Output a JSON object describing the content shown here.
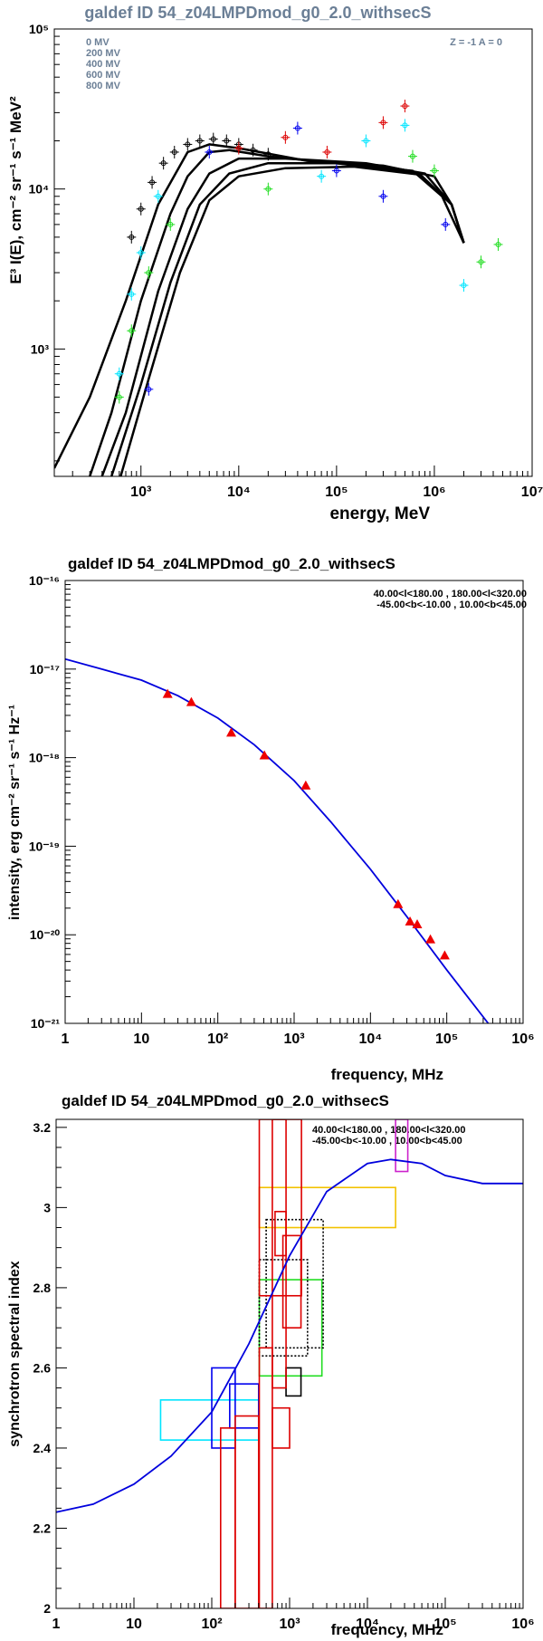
{
  "chart_data": [
    {
      "type": "line",
      "title": "galdef ID 54_z04LMPDmod_g0_2.0_withsecS",
      "xlabel": "energy, MeV",
      "ylabel": "E³ I(E), cm⁻² sr⁻¹ s⁻¹ MeV²",
      "xscale": "log",
      "yscale": "log",
      "xlim": [
        130,
        10000000
      ],
      "ylim": [
        160,
        100000
      ],
      "x_ticks": [
        {
          "v": 1000,
          "label": "10³"
        },
        {
          "v": 10000,
          "label": "10⁴"
        },
        {
          "v": 100000,
          "label": "10⁵"
        },
        {
          "v": 1000000,
          "label": "10⁶"
        },
        {
          "v": 10000000,
          "label": "10⁷"
        }
      ],
      "y_ticks": [
        {
          "v": 1000,
          "label": "10³"
        },
        {
          "v": 10000,
          "label": "10⁴"
        },
        {
          "v": 100000,
          "label": "10⁵"
        }
      ],
      "legend": [
        "0 MV",
        "200 MV",
        "400 MV",
        "600 MV",
        "800 MV"
      ],
      "annotation": "Z = -1  A = 0",
      "grid": false,
      "series": [
        {
          "x": [
            130,
            300,
            700,
            1500,
            3000,
            5000,
            10000,
            50000,
            300000,
            1000000,
            1500000,
            2000000
          ],
          "y": [
            180,
            500,
            2000,
            8000,
            17000,
            19000,
            18000,
            15000,
            14000,
            12000,
            8000,
            4600
          ]
        },
        {
          "x": [
            300,
            500,
            1000,
            2000,
            3000,
            5000,
            8000,
            20000,
            100000,
            600000,
            1200000,
            2000000
          ],
          "y": [
            160,
            400,
            2000,
            7000,
            12000,
            17000,
            17500,
            16000,
            14500,
            13000,
            9000,
            4600
          ]
        },
        {
          "x": [
            400,
            700,
            1500,
            3000,
            5000,
            10000,
            30000,
            200000,
            800000,
            1500000,
            2000000
          ],
          "y": [
            160,
            400,
            2300,
            7500,
            12500,
            15500,
            15500,
            14500,
            12500,
            8000,
            4600
          ]
        },
        {
          "x": [
            500,
            1000,
            2000,
            4000,
            8000,
            20000,
            100000,
            700000,
            1500000,
            2000000
          ],
          "y": [
            160,
            600,
            2600,
            8000,
            12500,
            14500,
            14500,
            12500,
            8000,
            4600
          ]
        },
        {
          "x": [
            620,
            1200,
            2500,
            5000,
            10000,
            30000,
            150000,
            700000,
            1500000,
            2000000
          ],
          "y": [
            160,
            650,
            3000,
            8500,
            12000,
            13500,
            13800,
            12300,
            8000,
            4600
          ]
        }
      ],
      "points": [
        {
          "x": 800,
          "y": 5000,
          "c": "black"
        },
        {
          "x": 1000,
          "y": 7500,
          "c": "black"
        },
        {
          "x": 1300,
          "y": 11000,
          "c": "black"
        },
        {
          "x": 1700,
          "y": 14500,
          "c": "black"
        },
        {
          "x": 2200,
          "y": 17000,
          "c": "black"
        },
        {
          "x": 3000,
          "y": 19000,
          "c": "black"
        },
        {
          "x": 4000,
          "y": 20000,
          "c": "black"
        },
        {
          "x": 5500,
          "y": 20500,
          "c": "black"
        },
        {
          "x": 7500,
          "y": 20000,
          "c": "black"
        },
        {
          "x": 10000,
          "y": 19000,
          "c": "black"
        },
        {
          "x": 14000,
          "y": 17500,
          "c": "black"
        },
        {
          "x": 20000,
          "y": 16500,
          "c": "black"
        },
        {
          "x": 600,
          "y": 700,
          "c": "cyan"
        },
        {
          "x": 800,
          "y": 2200,
          "c": "cyan"
        },
        {
          "x": 1000,
          "y": 4000,
          "c": "cyan"
        },
        {
          "x": 1500,
          "y": 9000,
          "c": "cyan"
        },
        {
          "x": 70000,
          "y": 12000,
          "c": "cyan"
        },
        {
          "x": 200000,
          "y": 20000,
          "c": "cyan"
        },
        {
          "x": 500000,
          "y": 25000,
          "c": "cyan"
        },
        {
          "x": 2000000,
          "y": 2500,
          "c": "cyan"
        },
        {
          "x": 600,
          "y": 500,
          "c": "green"
        },
        {
          "x": 800,
          "y": 1300,
          "c": "green"
        },
        {
          "x": 1200,
          "y": 3000,
          "c": "green"
        },
        {
          "x": 2000,
          "y": 6000,
          "c": "green"
        },
        {
          "x": 20000,
          "y": 10000,
          "c": "green"
        },
        {
          "x": 600000,
          "y": 16000,
          "c": "green"
        },
        {
          "x": 1000000,
          "y": 13000,
          "c": "green"
        },
        {
          "x": 3000000,
          "y": 3500,
          "c": "green"
        },
        {
          "x": 4500000,
          "y": 4500,
          "c": "green"
        },
        {
          "x": 1200,
          "y": 560,
          "c": "blue"
        },
        {
          "x": 5000,
          "y": 17000,
          "c": "blue"
        },
        {
          "x": 40000,
          "y": 24000,
          "c": "blue"
        },
        {
          "x": 100000,
          "y": 13000,
          "c": "blue"
        },
        {
          "x": 300000,
          "y": 9000,
          "c": "blue"
        },
        {
          "x": 1300000,
          "y": 6000,
          "c": "blue"
        },
        {
          "x": 10000,
          "y": 18000,
          "c": "red"
        },
        {
          "x": 30000,
          "y": 21000,
          "c": "red"
        },
        {
          "x": 80000,
          "y": 17000,
          "c": "red"
        },
        {
          "x": 300000,
          "y": 26000,
          "c": "red"
        },
        {
          "x": 500000,
          "y": 33000,
          "c": "red"
        }
      ]
    },
    {
      "type": "line",
      "title": "galdef ID 54_z04LMPDmod_g0_2.0_withsecS",
      "xlabel": "frequency, MHz",
      "ylabel": "intensity, erg cm⁻² sr⁻¹ s⁻¹ Hz⁻¹",
      "xscale": "log",
      "yscale": "log",
      "xlim": [
        1,
        1000000
      ],
      "ylim": [
        1e-21,
        1e-16
      ],
      "x_ticks": [
        {
          "v": 1,
          "label": "1"
        },
        {
          "v": 10,
          "label": "10"
        },
        {
          "v": 100,
          "label": "10²"
        },
        {
          "v": 1000,
          "label": "10³"
        },
        {
          "v": 10000,
          "label": "10⁴"
        },
        {
          "v": 100000,
          "label": "10⁵"
        },
        {
          "v": 1000000,
          "label": "10⁶"
        }
      ],
      "y_ticks": [
        {
          "v": 1e-21,
          "label": "10⁻²¹"
        },
        {
          "v": 1e-20,
          "label": "10⁻²⁰"
        },
        {
          "v": 1e-19,
          "label": "10⁻¹⁹"
        },
        {
          "v": 1e-18,
          "label": "10⁻¹⁸"
        },
        {
          "v": 1e-17,
          "label": "10⁻¹⁷"
        },
        {
          "v": 1e-16,
          "label": "10⁻¹⁶"
        }
      ],
      "region": [
        "40.00<l<180.00 , 180.00<l<320.00",
        "-45.00<b<-10.00 , 10.00<b<45.00"
      ],
      "grid": false,
      "model": {
        "x": [
          1,
          3,
          10,
          30,
          100,
          300,
          1000,
          3000,
          10000,
          30000,
          100000,
          350000
        ],
        "y": [
          1.3e-17,
          1e-17,
          7.5e-18,
          5e-18,
          2.8e-18,
          1.4e-18,
          5.5e-19,
          1.9e-19,
          5.5e-20,
          1.6e-20,
          4e-21,
          1e-21
        ]
      },
      "points": [
        {
          "x": 22,
          "y": 5.2e-18
        },
        {
          "x": 45,
          "y": 4.2e-18
        },
        {
          "x": 150,
          "y": 1.9e-18
        },
        {
          "x": 408,
          "y": 1.05e-18
        },
        {
          "x": 1420,
          "y": 4.8e-19
        },
        {
          "x": 23000,
          "y": 2.2e-20
        },
        {
          "x": 33000,
          "y": 1.4e-20
        },
        {
          "x": 41000,
          "y": 1.3e-20
        },
        {
          "x": 61000,
          "y": 8.8e-21
        },
        {
          "x": 94000,
          "y": 5.8e-21
        }
      ]
    },
    {
      "type": "line",
      "title": "galdef ID 54_z04LMPDmod_g0_2.0_withsecS",
      "xlabel": "frequency, MHz",
      "ylabel": "synchrotron spectral index",
      "xscale": "log",
      "yscale": "linear",
      "xlim": [
        1,
        1000000
      ],
      "ylim": [
        2,
        3.22
      ],
      "x_ticks": [
        {
          "v": 1,
          "label": "1"
        },
        {
          "v": 10,
          "label": "10"
        },
        {
          "v": 100,
          "label": "10²"
        },
        {
          "v": 1000,
          "label": "10³"
        },
        {
          "v": 10000,
          "label": "10⁴"
        },
        {
          "v": 100000,
          "label": "10⁵"
        },
        {
          "v": 1000000,
          "label": "10⁶"
        }
      ],
      "y_ticks": [
        {
          "v": 2,
          "label": "2"
        },
        {
          "v": 2.2,
          "label": "2.2"
        },
        {
          "v": 2.4,
          "label": "2.4"
        },
        {
          "v": 2.6,
          "label": "2.6"
        },
        {
          "v": 2.8,
          "label": "2.8"
        },
        {
          "v": 3,
          "label": "3"
        },
        {
          "v": 3.2,
          "label": "3.2"
        }
      ],
      "region": [
        "40.00<l<180.00 , 180.00<l<320.00",
        "-45.00<b<-10.00 , 10.00<b<45.00"
      ],
      "grid": false,
      "model": {
        "x": [
          1,
          3,
          10,
          30,
          100,
          300,
          1000,
          3000,
          10000,
          20000,
          50000,
          100000,
          300000,
          1000000
        ],
        "y": [
          2.24,
          2.26,
          2.31,
          2.38,
          2.49,
          2.66,
          2.88,
          3.04,
          3.11,
          3.12,
          3.11,
          3.08,
          3.06,
          3.06
        ]
      },
      "boxes": [
        {
          "x": [
            22,
            400
          ],
          "y": [
            2.42,
            2.52
          ],
          "c": "cyan"
        },
        {
          "x": [
            100,
            200
          ],
          "y": [
            2.4,
            2.6
          ],
          "c": "blue"
        },
        {
          "x": [
            170,
            400
          ],
          "y": [
            2.45,
            2.56
          ],
          "c": "blue"
        },
        {
          "x": [
            408,
            2600
          ],
          "y": [
            2.58,
            2.82
          ],
          "c": "green"
        },
        {
          "x": [
            408,
            23000
          ],
          "y": [
            2.95,
            3.05
          ],
          "c": "gold"
        },
        {
          "x": [
            23000,
            33000
          ],
          "y": [
            3.09,
            3.22
          ],
          "c": "magenta"
        },
        {
          "x": [
            900,
            1400
          ],
          "y": [
            2.53,
            2.6
          ],
          "c": "black"
        },
        {
          "x": [
            500,
            2700
          ],
          "y": [
            2.65,
            2.97
          ],
          "c": "black",
          "dash": true
        },
        {
          "x": [
            408,
            1700
          ],
          "y": [
            2.63,
            2.87
          ],
          "c": "black",
          "dash": true
        },
        {
          "x": [
            130,
            200
          ],
          "y": [
            2,
            2.45
          ],
          "c": "red"
        },
        {
          "x": [
            200,
            400
          ],
          "y": [
            2,
            2.48
          ],
          "c": "red"
        },
        {
          "x": [
            408,
            1420
          ],
          "y": [
            2.78,
            3.22
          ],
          "c": "red"
        },
        {
          "x": [
            600,
            900
          ],
          "y": [
            2.55,
            3.22
          ],
          "c": "red"
        },
        {
          "x": [
            650,
            900
          ],
          "y": [
            2.88,
            2.99
          ],
          "c": "red"
        },
        {
          "x": [
            820,
            1400
          ],
          "y": [
            2.7,
            2.93
          ],
          "c": "red"
        },
        {
          "x": [
            408,
            600
          ],
          "y": [
            2,
            2.65
          ],
          "c": "red"
        },
        {
          "x": [
            600,
            1000
          ],
          "y": [
            2.4,
            2.5
          ],
          "c": "red"
        }
      ]
    }
  ]
}
